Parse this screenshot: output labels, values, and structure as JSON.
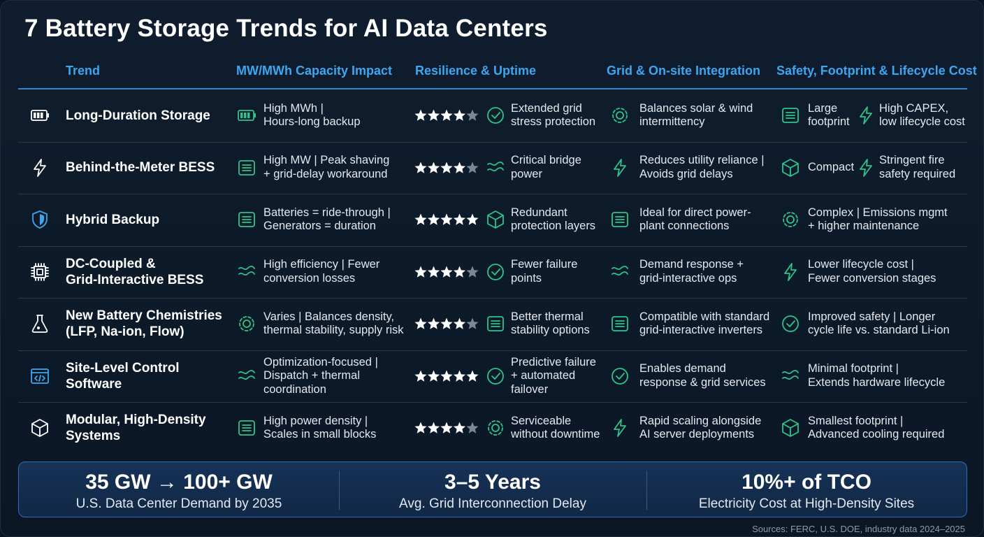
{
  "title": "7 Battery Storage Trends for AI Data Centers",
  "columns": [
    "Trend",
    "MW/MWh Capacity Impact",
    "Resilience & Uptime",
    "Grid & On-site Integration",
    "Safety, Footprint & Lifecycle Cost"
  ],
  "rows": [
    {
      "trend": "Long-Duration Storage",
      "capacity": "High MWh |\nHours-long backup",
      "rating": 4,
      "resilience": "Extended grid\nstress protection",
      "grid": "Balances solar & wind\nintermittency",
      "safety": [
        "Large\nfootprint",
        "High CAPEX,\nlow lifecycle cost"
      ]
    },
    {
      "trend": "Behind-the-Meter BESS",
      "capacity": "High MW | Peak shaving\n+ grid-delay workaround",
      "rating": 4,
      "resilience": "Critical bridge\npower",
      "grid": "Reduces utility reliance |\nAvoids grid delays",
      "safety": [
        "Compact",
        "Stringent fire\nsafety required"
      ]
    },
    {
      "trend": "Hybrid Backup",
      "capacity": "Batteries = ride-through |\nGenerators = duration",
      "rating": 5,
      "resilience": "Redundant\nprotection layers",
      "grid": "Ideal for direct power-\nplant connections",
      "safety": [
        "Complex | Emissions mgmt\n+ higher maintenance"
      ]
    },
    {
      "trend": "DC-Coupled &\nGrid-Interactive BESS",
      "capacity": "High efficiency | Fewer\nconversion losses",
      "rating": 4,
      "resilience": "Fewer failure\npoints",
      "grid": "Demand response +\ngrid-interactive ops",
      "safety": [
        "Lower lifecycle cost |\nFewer conversion stages"
      ]
    },
    {
      "trend": "New Battery Chemistries\n(LFP, Na-ion, Flow)",
      "capacity": "Varies | Balances density,\nthermal stability, supply risk",
      "rating": 4,
      "resilience": "Better thermal\nstability options",
      "grid": "Compatible with standard\ngrid-interactive inverters",
      "safety": [
        "Improved safety | Longer\ncycle life vs. standard Li-ion"
      ]
    },
    {
      "trend": "Site-Level Control\nSoftware",
      "capacity": "Optimization-focused |\nDispatch + thermal\ncoordination",
      "rating": 5,
      "resilience": "Predictive failure\n+ automated\nfailover",
      "grid": "Enables demand\nresponse & grid services",
      "safety": [
        "Minimal footprint |\nExtends hardware lifecycle"
      ]
    },
    {
      "trend": "Modular, High-Density\nSystems",
      "capacity": "High power density |\nScales in small blocks",
      "rating": 4,
      "resilience": "Serviceable\nwithout downtime",
      "grid": "Rapid scaling alongside\nAI server deployments",
      "safety": [
        "Smallest footprint |\nAdvanced cooling required"
      ]
    }
  ],
  "stats": [
    {
      "headline": "35 GW → 100+ GW",
      "caption": "U.S. Data Center Demand by 2035"
    },
    {
      "headline": "3–5 Years",
      "caption": "Avg. Grid Interconnection Delay"
    },
    {
      "headline": "10%+ of TCO",
      "caption": "Electricity Cost at High-Density Sites"
    }
  ],
  "sources": "Sources: FERC, U.S. DOE, industry data 2024–2025"
}
